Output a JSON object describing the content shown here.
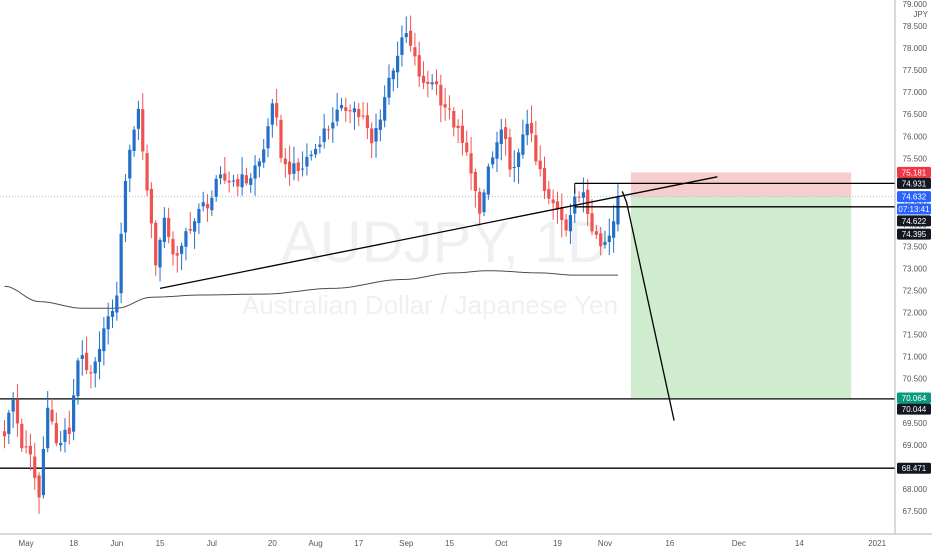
{
  "watermark": {
    "symbol": "AUDJPY, 1D",
    "description": "Australian Dollar / Japanese Yen"
  },
  "chart_data": {
    "type": "candlestick",
    "symbol": "AUDJPY",
    "timeframe": "1D",
    "currency_label": "JPY",
    "ylim": [
      67.0,
      79.2
    ],
    "y_ticks": [
      "79.000",
      "78.500",
      "78.000",
      "77.500",
      "77.000",
      "76.500",
      "76.000",
      "75.500",
      "75.000",
      "74.500",
      "74.000",
      "73.500",
      "73.000",
      "72.500",
      "72.000",
      "71.500",
      "71.000",
      "70.500",
      "70.000",
      "69.500",
      "69.000",
      "68.500",
      "68.000",
      "67.500"
    ],
    "x_ticks": [
      {
        "label": "May",
        "i": 5
      },
      {
        "label": "18",
        "i": 16
      },
      {
        "label": "Jun",
        "i": 26
      },
      {
        "label": "15",
        "i": 36
      },
      {
        "label": "Jul",
        "i": 48
      },
      {
        "label": "20",
        "i": 62
      },
      {
        "label": "Aug",
        "i": 72
      },
      {
        "label": "17",
        "i": 82
      },
      {
        "label": "Sep",
        "i": 93
      },
      {
        "label": "15",
        "i": 103
      },
      {
        "label": "Oct",
        "i": 115
      },
      {
        "label": "19",
        "i": 128
      },
      {
        "label": "Nov",
        "i": 139
      },
      {
        "label": "16",
        "i": 154
      },
      {
        "label": "Dec",
        "i": 170
      },
      {
        "label": "14",
        "i": 184
      },
      {
        "label": "2021",
        "i": 202
      }
    ],
    "anchors": [
      [
        0,
        69.3
      ],
      [
        2,
        70.0
      ],
      [
        4,
        69.0
      ],
      [
        6,
        68.7
      ],
      [
        8,
        67.8
      ],
      [
        10,
        70.0
      ],
      [
        12,
        69.0
      ],
      [
        15,
        69.3
      ],
      [
        17,
        71.0
      ],
      [
        20,
        70.5
      ],
      [
        23,
        71.6
      ],
      [
        26,
        72.3
      ],
      [
        27,
        73.9
      ],
      [
        29,
        75.8
      ],
      [
        31,
        76.6
      ],
      [
        33,
        74.8
      ],
      [
        35,
        73.2
      ],
      [
        37,
        74.0
      ],
      [
        40,
        73.2
      ],
      [
        43,
        74.0
      ],
      [
        47,
        74.5
      ],
      [
        50,
        75.0
      ],
      [
        53,
        75.0
      ],
      [
        56,
        75.0
      ],
      [
        59,
        75.4
      ],
      [
        62,
        76.6
      ],
      [
        65,
        75.3
      ],
      [
        68,
        75.2
      ],
      [
        71,
        75.6
      ],
      [
        74,
        76.1
      ],
      [
        77,
        76.5
      ],
      [
        80,
        76.7
      ],
      [
        83,
        76.4
      ],
      [
        85,
        75.8
      ],
      [
        87,
        76.5
      ],
      [
        89,
        77.3
      ],
      [
        91,
        77.9
      ],
      [
        93,
        78.3
      ],
      [
        95,
        77.7
      ],
      [
        97,
        77.1
      ],
      [
        99,
        77.3
      ],
      [
        102,
        76.7
      ],
      [
        104,
        76.3
      ],
      [
        106,
        75.8
      ],
      [
        108,
        75.3
      ],
      [
        110,
        74.1
      ],
      [
        112,
        75.3
      ],
      [
        115,
        76.0
      ],
      [
        118,
        75.2
      ],
      [
        121,
        76.4
      ],
      [
        123,
        75.4
      ],
      [
        126,
        74.5
      ],
      [
        128,
        74.4
      ],
      [
        130,
        74.0
      ],
      [
        132,
        74.5
      ],
      [
        134,
        74.8
      ],
      [
        136,
        74.0
      ],
      [
        138,
        73.5
      ],
      [
        140,
        73.8
      ],
      [
        142,
        74.63
      ]
    ],
    "ma_anchors": [
      [
        0,
        72.6
      ],
      [
        8,
        72.25
      ],
      [
        18,
        72.1
      ],
      [
        26,
        72.1
      ],
      [
        34,
        72.35
      ],
      [
        46,
        72.4
      ],
      [
        60,
        72.42
      ],
      [
        76,
        72.55
      ],
      [
        92,
        72.75
      ],
      [
        104,
        72.9
      ],
      [
        112,
        72.95
      ],
      [
        124,
        72.9
      ],
      [
        132,
        72.85
      ],
      [
        142,
        72.85
      ]
    ],
    "last_index": 142,
    "annotations": {
      "support_trendline": {
        "from": {
          "i": 36,
          "price": 72.55
        },
        "to": {
          "i": 165,
          "price": 75.08
        }
      },
      "resistance_line": {
        "from": {
          "i": 132,
          "price": 74.931
        },
        "to": {
          "i": 207,
          "price": 74.931
        }
      },
      "entry_line": {
        "from": {
          "i": 132,
          "price": 74.4
        },
        "to": {
          "i": 207,
          "price": 74.4
        }
      },
      "support_line_1": {
        "price": 70.044
      },
      "support_line_2": {
        "price": 68.471
      },
      "projection_path": [
        {
          "i": 143,
          "price": 74.75
        },
        {
          "i": 144,
          "price": 74.5
        },
        {
          "i": 155,
          "price": 69.55
        }
      ],
      "stop_zone": {
        "from_i": 145,
        "to_i": 196,
        "top": 75.181,
        "bottom": 74.622
      },
      "target_zone": {
        "from_i": 145,
        "to_i": 196,
        "top": 74.622,
        "bottom": 70.064
      }
    },
    "price_tags": [
      {
        "label": "75.181",
        "price": 75.181,
        "color": "#f23645"
      },
      {
        "label": "74.931",
        "price": 74.931,
        "color": "#131722"
      },
      {
        "label": "74.632",
        "price": 74.632,
        "color": "#2962ff"
      },
      {
        "label": "07:13:41",
        "price": 74.35,
        "color": "#2962ff"
      },
      {
        "label": "74.622",
        "price": 74.08,
        "color": "#131722"
      },
      {
        "label": "74.395",
        "price": 73.78,
        "color": "#131722"
      },
      {
        "label": "70.064",
        "price": 70.064,
        "color": "#089981"
      },
      {
        "label": "70.044",
        "price": 69.81,
        "color": "#131722"
      },
      {
        "label": "68.471",
        "price": 68.471,
        "color": "#131722"
      }
    ],
    "colors": {
      "up": "#2270c7",
      "down": "#ef5350",
      "ma": "#4b4b4b",
      "stop_zone": "#f7cdcf",
      "target_zone": "#cfeccf",
      "annotation": "#000000",
      "price_line": "#9fc5e8"
    }
  }
}
